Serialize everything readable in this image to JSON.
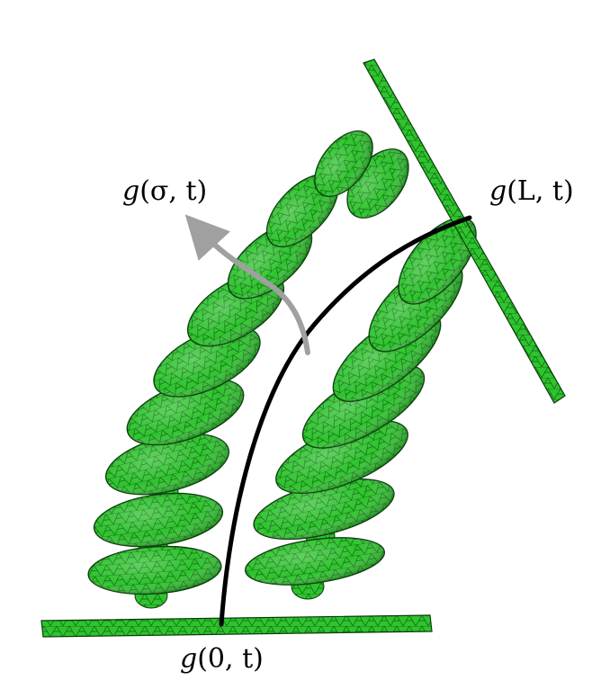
{
  "labels": {
    "sigma": {
      "g": "g",
      "args": "(σ, t)"
    },
    "end": {
      "g": "g",
      "args": "(L, t)"
    },
    "start": {
      "g": "g",
      "args": "(0, t)"
    }
  },
  "colors": {
    "mesh_fill": "#22c222",
    "mesh_dark": "#0a6a0a",
    "mesh_line": "#0b3d0b",
    "backbone": "#000000",
    "arrow": "#a0a0a0"
  }
}
